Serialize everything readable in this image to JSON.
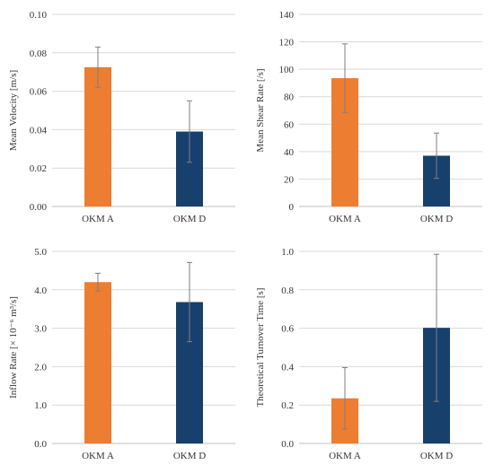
{
  "colors": {
    "okm_a": "#ED7D31",
    "okm_d": "#17406D",
    "grid": "#D9D9D9"
  },
  "chart_data": [
    {
      "type": "bar",
      "categories": [
        "OKM A",
        "OKM D"
      ],
      "values": [
        0.0725,
        0.039
      ],
      "error": [
        0.0105,
        0.016
      ],
      "ylabel": "Mean Velocity [m/s]",
      "ylim": [
        0,
        0.1
      ],
      "yticks": [
        "0.00",
        "0.02",
        "0.04",
        "0.06",
        "0.08",
        "0.10"
      ],
      "grid": true
    },
    {
      "type": "bar",
      "categories": [
        "OKM A",
        "OKM D"
      ],
      "values": [
        93.5,
        37
      ],
      "error": [
        25,
        16.5
      ],
      "ylabel": "Mean Shear Rate [/s]",
      "ylim": [
        0,
        140
      ],
      "yticks": [
        "0",
        "20",
        "40",
        "60",
        "80",
        "100",
        "120",
        "140"
      ],
      "grid": true
    },
    {
      "type": "bar",
      "categories": [
        "OKM A",
        "OKM D"
      ],
      "values": [
        4.2,
        3.68
      ],
      "error": [
        0.23,
        1.03
      ],
      "ylabel": "Inflow Rate [× 10⁻⁶ m³/s]",
      "ylim": [
        0,
        5
      ],
      "yticks": [
        "0.0",
        "1.0",
        "2.0",
        "3.0",
        "4.0",
        "5.0"
      ],
      "grid": true
    },
    {
      "type": "bar",
      "categories": [
        "OKM A",
        "OKM D"
      ],
      "values": [
        0.235,
        0.602
      ],
      "error": [
        0.16,
        0.383
      ],
      "ylabel": "Theoretical Turnover Time [s]",
      "ylim": [
        0,
        1
      ],
      "yticks": [
        "0.0",
        "0.2",
        "0.4",
        "0.6",
        "0.8",
        "1.0"
      ],
      "grid": true
    }
  ]
}
